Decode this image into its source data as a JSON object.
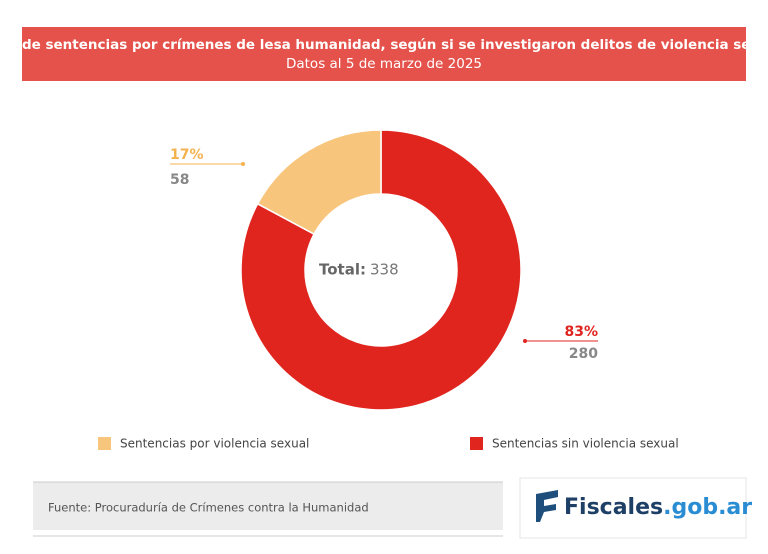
{
  "chart_data": {
    "type": "donut",
    "title": "Total de sentencias por crímenes de lesa humanidad, según si se investigaron delitos de violencia sexual.",
    "subtitle": "Datos al 5 de marzo de 2025",
    "total_label": "Total:",
    "total": 338,
    "series": [
      {
        "name": "Sentencias por violencia sexual",
        "color": "#f8c57c",
        "values": [
          58
        ],
        "percent_labels": [
          "17%"
        ],
        "label_color": "#f4b24f"
      },
      {
        "name": "Sentencias sin violencia sexual",
        "color": "#e0251f",
        "values": [
          280
        ],
        "percent_labels": [
          "83%"
        ],
        "label_color": "#e0251f"
      }
    ]
  },
  "footer": {
    "source": "Fuente: Procuraduría de Crímenes contra la Humanidad",
    "logo_main": "Fiscales",
    "logo_domain": ".gob.ar"
  }
}
